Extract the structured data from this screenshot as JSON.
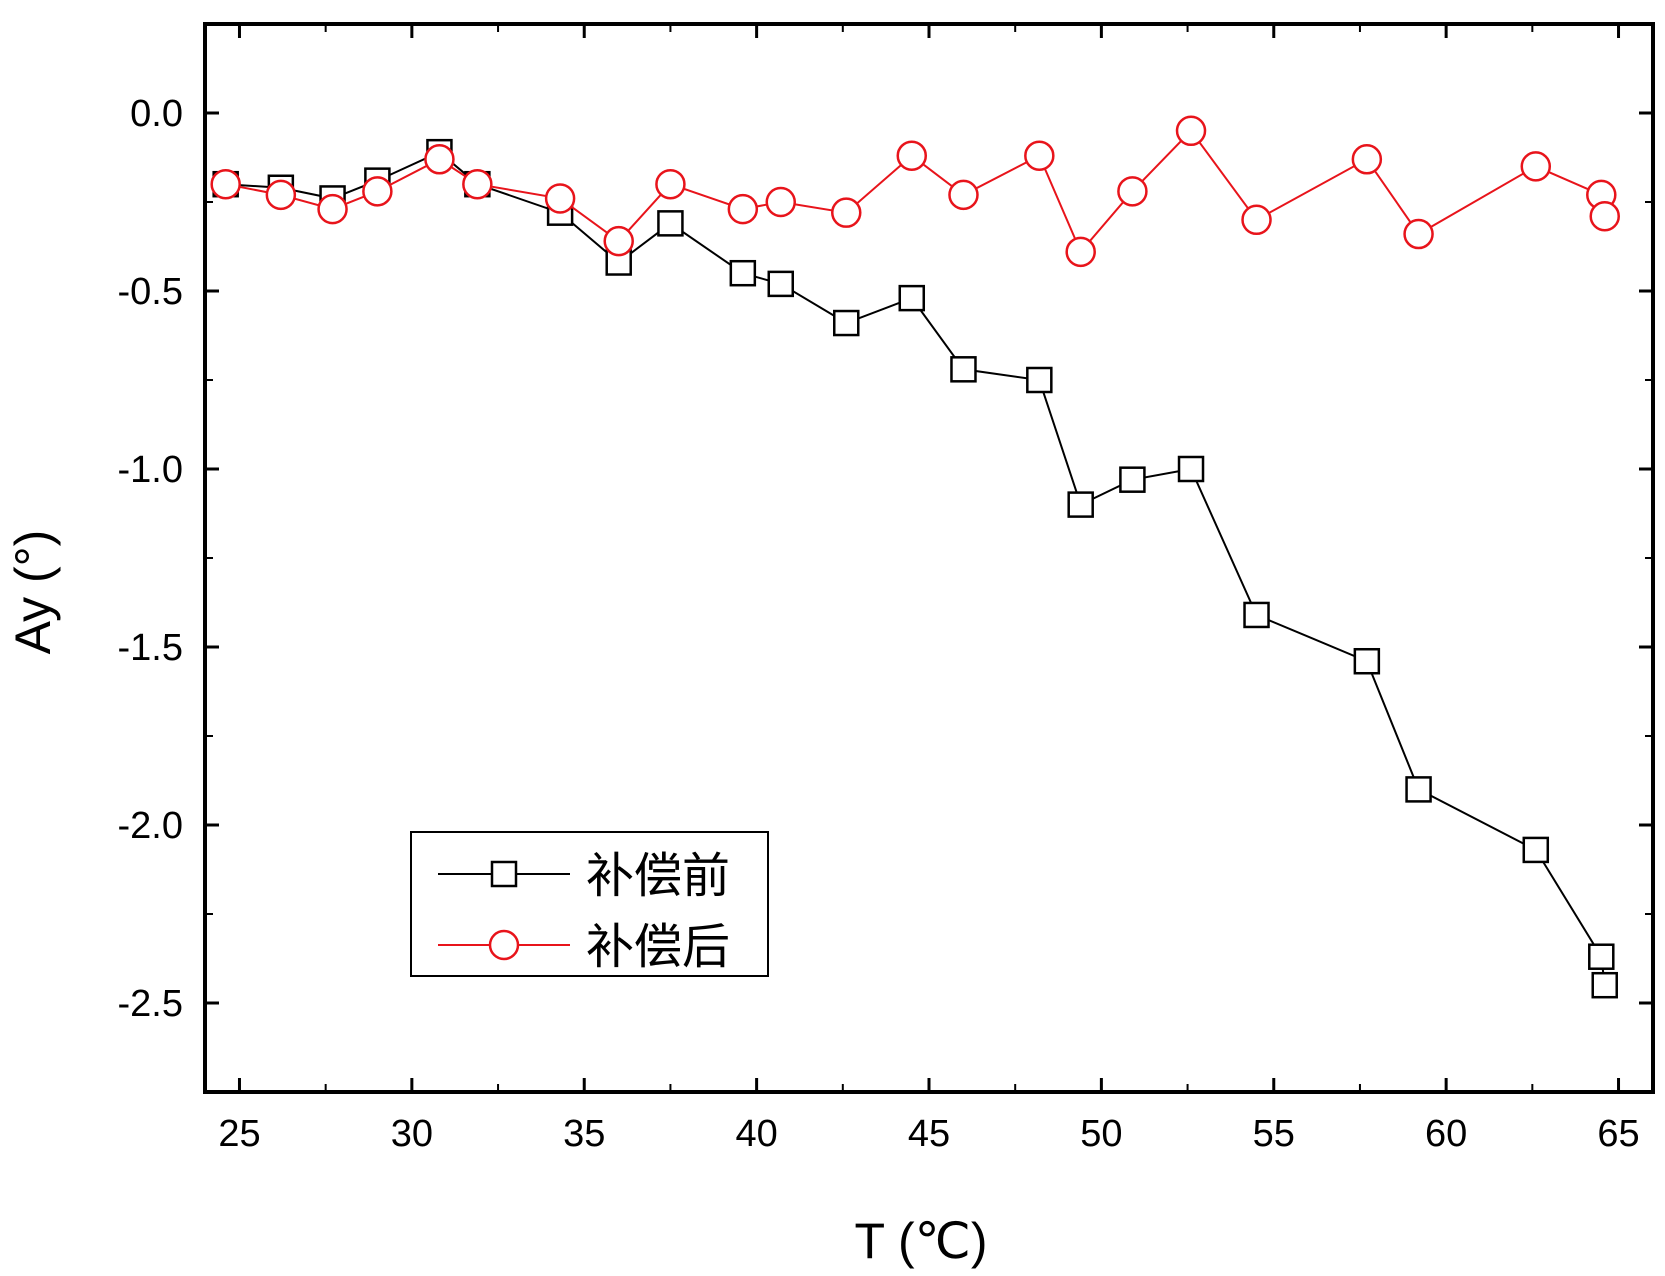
{
  "chart_data": {
    "type": "line",
    "xlabel": "T (℃)",
    "ylabel": "Ay (°)",
    "xlim": [
      24,
      66
    ],
    "ylim": [
      -2.75,
      0.25
    ],
    "xticks": [
      25,
      30,
      35,
      40,
      45,
      50,
      55,
      60,
      65
    ],
    "yticks": [
      0.0,
      -0.5,
      -1.0,
      -1.5,
      -2.0,
      -2.5
    ],
    "xtick_labels": [
      "25",
      "30",
      "35",
      "40",
      "45",
      "50",
      "55",
      "60",
      "65"
    ],
    "ytick_labels": [
      "0.0",
      "-0.5",
      "-1.0",
      "-1.5",
      "-2.0",
      "-2.5"
    ],
    "grid": false,
    "legend_position": "bottom-left",
    "series": [
      {
        "name": "补偿前",
        "color": "#000000",
        "marker": "square",
        "x": [
          24.6,
          26.2,
          27.7,
          29.0,
          30.8,
          31.9,
          34.3,
          36.0,
          37.5,
          39.6,
          40.7,
          42.6,
          44.5,
          46.0,
          48.2,
          49.4,
          50.9,
          52.6,
          54.5,
          57.7,
          59.2,
          62.6,
          64.5,
          64.6
        ],
        "y": [
          -0.2,
          -0.21,
          -0.24,
          -0.19,
          -0.11,
          -0.2,
          -0.28,
          -0.42,
          -0.31,
          -0.45,
          -0.48,
          -0.59,
          -0.52,
          -0.72,
          -0.75,
          -1.1,
          -1.03,
          -1.0,
          -1.41,
          -1.54,
          -1.9,
          -2.07,
          -2.37,
          -2.45
        ]
      },
      {
        "name": "补偿后",
        "color": "#e8141b",
        "marker": "circle",
        "x": [
          24.6,
          26.2,
          27.7,
          29.0,
          30.8,
          31.9,
          34.3,
          36.0,
          37.5,
          39.6,
          40.7,
          42.6,
          44.5,
          46.0,
          48.2,
          49.4,
          50.9,
          52.6,
          54.5,
          57.7,
          59.2,
          62.6,
          64.5,
          64.6
        ],
        "y": [
          -0.2,
          -0.23,
          -0.27,
          -0.22,
          -0.13,
          -0.2,
          -0.24,
          -0.36,
          -0.2,
          -0.27,
          -0.25,
          -0.28,
          -0.12,
          -0.23,
          -0.12,
          -0.39,
          -0.22,
          -0.05,
          -0.3,
          -0.13,
          -0.34,
          -0.15,
          -0.23,
          -0.29
        ]
      }
    ]
  }
}
